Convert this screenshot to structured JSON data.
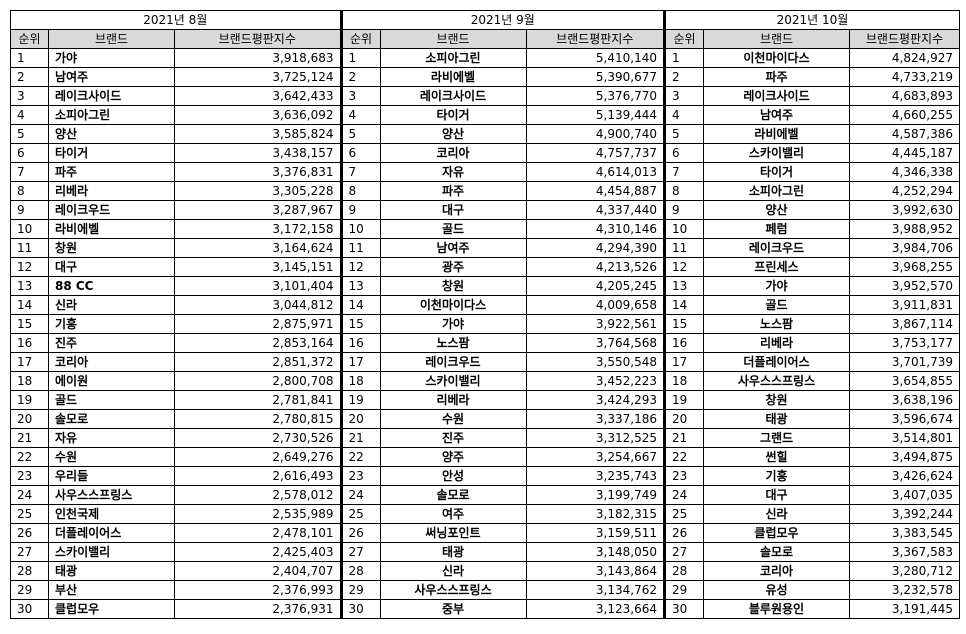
{
  "headers": {
    "rank": "순위",
    "brand": "브랜드",
    "index": "브랜드평판지수"
  },
  "tables": [
    {
      "month": "2021년 8월",
      "rows": [
        [
          "1",
          "가야",
          "3,918,683"
        ],
        [
          "2",
          "남여주",
          "3,725,124"
        ],
        [
          "3",
          "레이크사이드",
          "3,642,433"
        ],
        [
          "4",
          "소피아그린",
          "3,636,092"
        ],
        [
          "5",
          "양산",
          "3,585,824"
        ],
        [
          "6",
          "타이거",
          "3,438,157"
        ],
        [
          "7",
          "파주",
          "3,376,831"
        ],
        [
          "8",
          "리베라",
          "3,305,228"
        ],
        [
          "9",
          "레이크우드",
          "3,287,967"
        ],
        [
          "10",
          "라비에벨",
          "3,172,158"
        ],
        [
          "11",
          "창원",
          "3,164,624"
        ],
        [
          "12",
          "대구",
          "3,145,151"
        ],
        [
          "13",
          "88 CC",
          "3,101,404"
        ],
        [
          "14",
          "신라",
          "3,044,812"
        ],
        [
          "15",
          "기흥",
          "2,875,971"
        ],
        [
          "16",
          "진주",
          "2,853,164"
        ],
        [
          "17",
          "코리아",
          "2,851,372"
        ],
        [
          "18",
          "에이원",
          "2,800,708"
        ],
        [
          "19",
          "골드",
          "2,781,841"
        ],
        [
          "20",
          "솔모로",
          "2,780,815"
        ],
        [
          "21",
          "자유",
          "2,730,526"
        ],
        [
          "22",
          "수원",
          "2,649,276"
        ],
        [
          "23",
          "우리들",
          "2,616,493"
        ],
        [
          "24",
          "사우스스프링스",
          "2,578,012"
        ],
        [
          "25",
          "인천국제",
          "2,535,989"
        ],
        [
          "26",
          "더플레이어스",
          "2,478,101"
        ],
        [
          "27",
          "스카이밸리",
          "2,425,403"
        ],
        [
          "28",
          "태광",
          "2,404,707"
        ],
        [
          "29",
          "부산",
          "2,376,993"
        ],
        [
          "30",
          "클럽모우",
          "2,376,931"
        ]
      ]
    },
    {
      "month": "2021년 9월",
      "rows": [
        [
          "1",
          "소피아그린",
          "5,410,140"
        ],
        [
          "2",
          "라비에벨",
          "5,390,677"
        ],
        [
          "3",
          "레이크사이드",
          "5,376,770"
        ],
        [
          "4",
          "타이거",
          "5,139,444"
        ],
        [
          "5",
          "양산",
          "4,900,740"
        ],
        [
          "6",
          "코리아",
          "4,757,737"
        ],
        [
          "7",
          "자유",
          "4,614,013"
        ],
        [
          "8",
          "파주",
          "4,454,887"
        ],
        [
          "9",
          "대구",
          "4,337,440"
        ],
        [
          "10",
          "골드",
          "4,310,146"
        ],
        [
          "11",
          "남여주",
          "4,294,390"
        ],
        [
          "12",
          "광주",
          "4,213,526"
        ],
        [
          "13",
          "창원",
          "4,205,245"
        ],
        [
          "14",
          "이천마이다스",
          "4,009,658"
        ],
        [
          "15",
          "가야",
          "3,922,561"
        ],
        [
          "16",
          "노스팜",
          "3,764,568"
        ],
        [
          "17",
          "레이크우드",
          "3,550,548"
        ],
        [
          "18",
          "스카이밸리",
          "3,452,223"
        ],
        [
          "19",
          "리베라",
          "3,424,293"
        ],
        [
          "20",
          "수원",
          "3,337,186"
        ],
        [
          "21",
          "진주",
          "3,312,525"
        ],
        [
          "22",
          "양주",
          "3,254,667"
        ],
        [
          "23",
          "안성",
          "3,235,743"
        ],
        [
          "24",
          "솔모로",
          "3,199,749"
        ],
        [
          "25",
          "여주",
          "3,182,315"
        ],
        [
          "26",
          "써닝포인트",
          "3,159,511"
        ],
        [
          "27",
          "태광",
          "3,148,050"
        ],
        [
          "28",
          "신라",
          "3,143,864"
        ],
        [
          "29",
          "사우스스프링스",
          "3,134,762"
        ],
        [
          "30",
          "중부",
          "3,123,664"
        ]
      ]
    },
    {
      "month": "2021년 10월",
      "rows": [
        [
          "1",
          "이천마이다스",
          "4,824,927"
        ],
        [
          "2",
          "파주",
          "4,733,219"
        ],
        [
          "3",
          "레이크사이드",
          "4,683,893"
        ],
        [
          "4",
          "남여주",
          "4,660,255"
        ],
        [
          "5",
          "라비에벨",
          "4,587,386"
        ],
        [
          "6",
          "스카이밸리",
          "4,445,187"
        ],
        [
          "7",
          "타이거",
          "4,346,338"
        ],
        [
          "8",
          "소피아그린",
          "4,252,294"
        ],
        [
          "9",
          "양산",
          "3,992,630"
        ],
        [
          "10",
          "페럼",
          "3,988,952"
        ],
        [
          "11",
          "레이크우드",
          "3,984,706"
        ],
        [
          "12",
          "프린세스",
          "3,968,255"
        ],
        [
          "13",
          "가야",
          "3,952,570"
        ],
        [
          "14",
          "골드",
          "3,911,831"
        ],
        [
          "15",
          "노스팜",
          "3,867,114"
        ],
        [
          "16",
          "리베라",
          "3,753,177"
        ],
        [
          "17",
          "더플레이어스",
          "3,701,739"
        ],
        [
          "18",
          "사우스스프링스",
          "3,654,855"
        ],
        [
          "19",
          "창원",
          "3,638,196"
        ],
        [
          "20",
          "태광",
          "3,596,674"
        ],
        [
          "21",
          "그랜드",
          "3,514,801"
        ],
        [
          "22",
          "썬힐",
          "3,494,875"
        ],
        [
          "23",
          "기흥",
          "3,426,624"
        ],
        [
          "24",
          "대구",
          "3,407,035"
        ],
        [
          "25",
          "신라",
          "3,392,244"
        ],
        [
          "26",
          "클럽모우",
          "3,383,545"
        ],
        [
          "27",
          "솔모로",
          "3,367,583"
        ],
        [
          "28",
          "코리아",
          "3,280,712"
        ],
        [
          "29",
          "유성",
          "3,232,578"
        ],
        [
          "30",
          "블루원용인",
          "3,191,445"
        ]
      ]
    }
  ]
}
